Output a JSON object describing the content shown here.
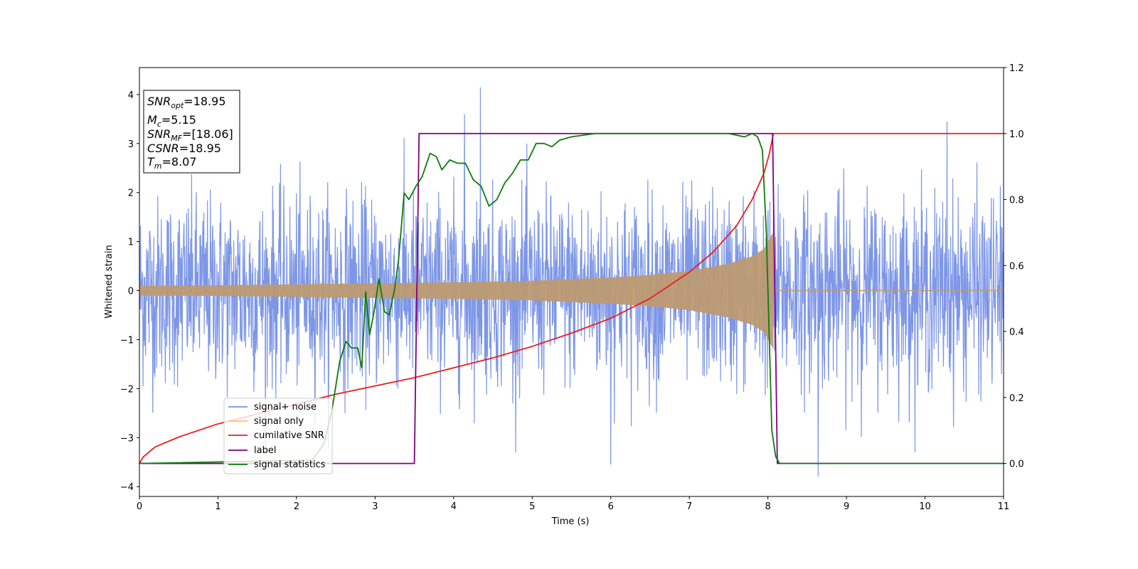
{
  "chart_data": {
    "type": "line",
    "title": "",
    "xlabel": "Time (s)",
    "ylabel": "Whitened strain",
    "xlim": [
      0,
      11
    ],
    "ylim_left": [
      -4.2,
      4.55
    ],
    "ylim_right": [
      -0.1,
      1.2
    ],
    "x_ticks": [
      "0",
      "1",
      "2",
      "3",
      "4",
      "5",
      "6",
      "7",
      "8",
      "9",
      "10",
      "11"
    ],
    "y_ticks_left": [
      "−4",
      "−3",
      "−2",
      "−1",
      "0",
      "1",
      "2",
      "3",
      "4"
    ],
    "y_ticks_right": [
      "0.0",
      "0.2",
      "0.4",
      "0.6",
      "0.8",
      "1.0",
      "1.2"
    ],
    "grid": false,
    "legend_position": "lower-left",
    "info_box": {
      "snr_opt_base": "SNR",
      "snr_opt_sub": "opt",
      "snr_opt_value": "=18.95",
      "mc_base": "M",
      "mc_sub": "c",
      "mc_value": "=5.15",
      "snr_mf_base": "SNR",
      "snr_mf_sub": "MF",
      "snr_mf_value": "=[18.06]",
      "csnr_base": "CSNR",
      "csnr_value": "=18.95",
      "tm_base": "T",
      "tm_sub": "m",
      "tm_value": "=8.07"
    },
    "series": [
      {
        "name": "signal+ noise",
        "axis": "left",
        "color": "#7690e6",
        "description_stats": {
          "x_range": [
            0,
            11
          ],
          "envelope_typical": 1.6,
          "peaks": [
            [
              4.34,
              4.15
            ],
            [
              4.14,
              3.6
            ],
            [
              8.64,
              -3.8
            ],
            [
              6.0,
              -3.55
            ],
            [
              10.28,
              3.45
            ]
          ]
        }
      },
      {
        "name": "signal only",
        "axis": "left",
        "color": "#bd9a72",
        "envelope": {
          "x": [
            0,
            1,
            2,
            3,
            4,
            5,
            6,
            6.5,
            7,
            7.5,
            7.8,
            7.95,
            8.07
          ],
          "amp": [
            0.1,
            0.11,
            0.13,
            0.15,
            0.17,
            0.2,
            0.27,
            0.32,
            0.4,
            0.55,
            0.7,
            0.85,
            1.2
          ]
        }
      },
      {
        "name": "cumilative SNR",
        "axis": "right",
        "color": "#ee1c1c",
        "x": [
          0,
          0.05,
          0.2,
          0.5,
          1,
          1.5,
          2,
          2.5,
          3,
          3.5,
          4,
          4.5,
          5,
          5.5,
          6,
          6.5,
          7,
          7.3,
          7.6,
          7.8,
          7.95,
          8.02,
          8.07,
          11
        ],
        "y": [
          0.0,
          0.02,
          0.05,
          0.08,
          0.12,
          0.15,
          0.18,
          0.21,
          0.235,
          0.26,
          0.29,
          0.32,
          0.355,
          0.395,
          0.44,
          0.5,
          0.58,
          0.64,
          0.72,
          0.8,
          0.88,
          0.94,
          1.0,
          1.0
        ]
      },
      {
        "name": "label",
        "axis": "right",
        "color": "#800080",
        "x": [
          0,
          3.5,
          3.56,
          8.06,
          8.12,
          11
        ],
        "y": [
          0,
          0,
          1,
          1,
          0,
          0
        ]
      },
      {
        "name": "signal statistics",
        "axis": "right",
        "color": "#0c7c0c",
        "x": [
          0,
          2.2,
          2.35,
          2.45,
          2.55,
          2.63,
          2.7,
          2.78,
          2.83,
          2.88,
          2.93,
          2.98,
          3.05,
          3.12,
          3.18,
          3.25,
          3.3,
          3.37,
          3.43,
          3.52,
          3.6,
          3.7,
          3.78,
          3.85,
          3.95,
          4.05,
          4.15,
          4.25,
          4.35,
          4.45,
          4.55,
          4.65,
          4.75,
          4.85,
          4.95,
          5.05,
          5.15,
          5.25,
          5.35,
          5.5,
          5.8,
          6.2,
          6.6,
          7.0,
          7.5,
          7.7,
          7.8,
          7.87,
          7.93,
          7.98,
          8.05,
          8.1,
          8.15,
          8.5,
          11
        ],
        "y": [
          0,
          0.01,
          0.06,
          0.16,
          0.31,
          0.37,
          0.35,
          0.35,
          0.29,
          0.52,
          0.39,
          0.45,
          0.56,
          0.46,
          0.45,
          0.53,
          0.62,
          0.82,
          0.8,
          0.84,
          0.87,
          0.94,
          0.93,
          0.89,
          0.92,
          0.91,
          0.91,
          0.86,
          0.84,
          0.78,
          0.8,
          0.85,
          0.88,
          0.92,
          0.92,
          0.97,
          0.97,
          0.96,
          0.98,
          0.99,
          1.0,
          1.0,
          1.0,
          1.0,
          1.0,
          0.99,
          1.0,
          0.99,
          0.95,
          0.7,
          0.1,
          0.02,
          0.0,
          0.0,
          0.0
        ]
      }
    ]
  }
}
